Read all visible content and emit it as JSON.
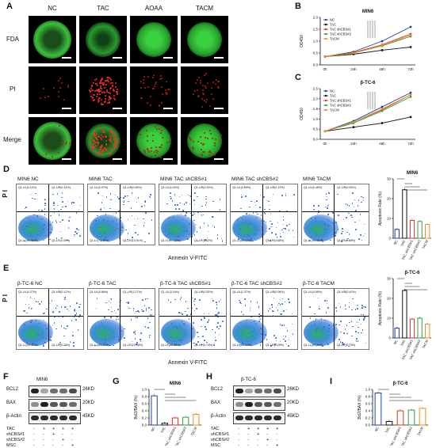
{
  "panels": {
    "A": {
      "letter": "A",
      "columns": [
        "NC",
        "TAC",
        "AOAA",
        "TACM"
      ],
      "rows": [
        "FDA",
        "PI",
        "Merge"
      ]
    },
    "B": {
      "letter": "B"
    },
    "C": {
      "letter": "C"
    },
    "D": {
      "letter": "D",
      "plots": [
        {
          "title": "MIN6 NC",
          "q": [
            "Q1-UL(0.11%)",
            "Q1-UR(0.14%)",
            "Q1-LL(95.88%)",
            "Q1-LR(4.39%)"
          ]
        },
        {
          "title": "MIN6 TAC",
          "q": [
            "Q1-UL(0.97%)",
            "Q1-UR(0.95%)",
            "Q1-LL(71.67%)",
            "Q1-LR(13.51%)"
          ]
        },
        {
          "title": "MIN6 TAC shCBS#1",
          "q": [
            "Q1-UL(0.92%)",
            "Q1-UR(0.33%)",
            "Q1-LL(91.13%)",
            "Q1-LR(3.62%)"
          ]
        },
        {
          "title": "MIN6 TAC shCBS#2",
          "q": [
            "Q1-UL(0.69%)",
            "Q1-UR(0.13%)",
            "Q1-LL(85.47%)",
            "Q1-LR(4.65%)"
          ]
        },
        {
          "title": "MIN6 TACM",
          "q": [
            "Q1-UL(0.45%)",
            "Q1-UR(0.05%)",
            "Q1-LL(90.99%)",
            "Q1-LR(3.65%)"
          ]
        }
      ],
      "ylabel": "P I",
      "xlabel": "Annexin V-FITC"
    },
    "E": {
      "letter": "E",
      "plots": [
        {
          "title": "β-TC-6 NC",
          "q": [
            "Q1-UL(0.27%)",
            "Q1-UR(0.12%)",
            "Q1-LL(92.17%)",
            "Q1-LR(4.74%)"
          ]
        },
        {
          "title": "β-TC-6 TAC",
          "q": [
            "Q1-UL(0.66%)",
            "Q1-UR(1.27%)",
            "Q1-LL(69.91%)",
            "Q1-LR(22.98%)"
          ]
        },
        {
          "title": "β-TC-6 TAC shCBS#1",
          "q": [
            "Q1-UL(3.16%)",
            "Q1-UR(0.53%)",
            "Q1-LL(88.56%)",
            "Q1-LR(5.74%)"
          ]
        },
        {
          "title": "β-TC-6 TAC shCBS#2",
          "q": [
            "Q1-UL(1.37%)",
            "Q1-UR(0.06%)",
            "Q1-LL(85.34%)",
            "Q1-LR(4.29%)"
          ]
        },
        {
          "title": "β-TC-6 TACM",
          "q": [
            "Q1-UL(0.55%)",
            "Q1-UR(0.42%)",
            "Q1-LL(89.29%)",
            "Q1-LR(5.73%)"
          ]
        }
      ],
      "ylabel": "P I",
      "xlabel": "Annexin V-FITC"
    },
    "F": {
      "letter": "F",
      "cell_line": "MIN6",
      "bands": [
        {
          "name": "BCL2",
          "size": "26KD"
        },
        {
          "name": "BAX",
          "size": "20KD"
        },
        {
          "name": "β-Actin",
          "size": "45KD"
        }
      ],
      "conditions": [
        "TAC",
        "shCBS#1",
        "shCBS#2",
        "MSC"
      ],
      "signs": [
        [
          "-",
          "+",
          "+",
          "+",
          "+"
        ],
        [
          "-",
          "-",
          "+",
          "-",
          "-"
        ],
        [
          "-",
          "-",
          "-",
          "+",
          "-"
        ],
        [
          "-",
          "-",
          "-",
          "-",
          "+"
        ]
      ]
    },
    "G": {
      "letter": "G"
    },
    "H": {
      "letter": "H",
      "cell_line": "β-TC-6",
      "bands": [
        {
          "name": "BCL2",
          "size": "26KD"
        },
        {
          "name": "BAX",
          "size": "20KD"
        },
        {
          "name": "β-Actin",
          "size": "45KD"
        }
      ],
      "conditions": [
        "TAC",
        "shCBS#1",
        "shCBS#2",
        "MSC"
      ],
      "signs": [
        [
          "-",
          "+",
          "+",
          "+",
          "+"
        ],
        [
          "-",
          "-",
          "+",
          "-",
          "-"
        ],
        [
          "-",
          "-",
          "-",
          "+",
          "-"
        ],
        [
          "-",
          "-",
          "-",
          "-",
          "+"
        ]
      ]
    },
    "I": {
      "letter": "I"
    }
  },
  "legend_groups": [
    "NC",
    "TAC",
    "TAC shCBS#1",
    "TAC shCBS#2",
    "TACM"
  ],
  "colors": {
    "NC": "#1f3f9a",
    "TAC": "#111111",
    "TAC shCBS#1": "#e0301e",
    "TAC shCBS#2": "#2e9e4a",
    "TACM": "#f08c1e"
  },
  "chart_data": [
    {
      "id": "B",
      "type": "line",
      "title": "MIN6",
      "ylabel": "OD450",
      "xlabel": "",
      "x": [
        "0h",
        "24h",
        "48h",
        "72h"
      ],
      "ylim": [
        0,
        2.0
      ],
      "yticks": [
        "0.0",
        "0.5",
        "1.0",
        "1.5",
        "2.0"
      ],
      "series": [
        {
          "name": "NC",
          "values": [
            0.35,
            0.55,
            1.0,
            1.6
          ]
        },
        {
          "name": "TAC",
          "values": [
            0.35,
            0.45,
            0.62,
            0.75
          ]
        },
        {
          "name": "TAC shCBS#1",
          "values": [
            0.35,
            0.52,
            0.85,
            1.3
          ]
        },
        {
          "name": "TAC shCBS#2",
          "values": [
            0.35,
            0.5,
            0.8,
            1.2
          ]
        },
        {
          "name": "TACM",
          "values": [
            0.35,
            0.5,
            0.82,
            1.25
          ]
        }
      ]
    },
    {
      "id": "C",
      "type": "line",
      "title": "β-TC-6",
      "ylabel": "OD450",
      "xlabel": "",
      "x": [
        "0h",
        "24h",
        "48h",
        "72h"
      ],
      "ylim": [
        0,
        2.5
      ],
      "yticks": [
        "0.0",
        "0.5",
        "1.0",
        "1.5",
        "2.0",
        "2.5"
      ],
      "series": [
        {
          "name": "NC",
          "values": [
            0.4,
            0.9,
            1.6,
            2.3
          ]
        },
        {
          "name": "TAC",
          "values": [
            0.4,
            0.6,
            0.8,
            1.1
          ]
        },
        {
          "name": "TAC shCBS#1",
          "values": [
            0.4,
            0.85,
            1.45,
            2.2
          ]
        },
        {
          "name": "TAC shCBS#2",
          "values": [
            0.4,
            0.8,
            1.4,
            2.1
          ]
        },
        {
          "name": "TACM",
          "values": [
            0.4,
            0.85,
            1.5,
            2.2
          ]
        }
      ]
    },
    {
      "id": "D-bar",
      "type": "bar",
      "title": "MIN6",
      "ylabel": "Apoptosis Rate (%)",
      "categories": [
        "NC",
        "TAC",
        "TAC shCBS#1",
        "TAC shCBS#2",
        "TACM"
      ],
      "values": [
        4.5,
        24.5,
        9.0,
        8.5,
        7.0
      ],
      "ylim": [
        0,
        30
      ],
      "yticks": [
        "0",
        "10",
        "20",
        "30"
      ]
    },
    {
      "id": "E-bar",
      "type": "bar",
      "title": "β-TC-6",
      "ylabel": "Apoptosis Rate (%)",
      "categories": [
        "NC",
        "TAC",
        "TAC shCBS#1",
        "TAC shCBS#2",
        "TACM"
      ],
      "values": [
        5.0,
        24.0,
        9.5,
        10.0,
        7.0
      ],
      "ylim": [
        0,
        30
      ],
      "yticks": [
        "0",
        "10",
        "20",
        "30"
      ]
    },
    {
      "id": "G",
      "type": "bar",
      "title": "MIN6",
      "ylabel": "Bcl2/BAX (%)",
      "categories": [
        "NC",
        "TAC",
        "TAC shCBS#1",
        "TAC shCBS#2",
        "TACM"
      ],
      "values": [
        0.82,
        0.05,
        0.2,
        0.22,
        0.3
      ],
      "ylim": [
        0,
        1.0
      ],
      "yticks": [
        "0.0",
        "0.2",
        "0.4",
        "0.6",
        "0.8",
        "1.0"
      ]
    },
    {
      "id": "I",
      "type": "bar",
      "title": "β-TC-6",
      "ylabel": "Bcl2/BAX (%)",
      "categories": [
        "NC",
        "TAC",
        "TAC shCBS#1",
        "TAC shCBS#2",
        "TACM"
      ],
      "values": [
        0.9,
        0.1,
        0.4,
        0.42,
        0.47
      ],
      "ylim": [
        0,
        1.0
      ],
      "yticks": [
        "0.0",
        "0.2",
        "0.4",
        "0.6",
        "0.8",
        "1.0"
      ]
    }
  ]
}
